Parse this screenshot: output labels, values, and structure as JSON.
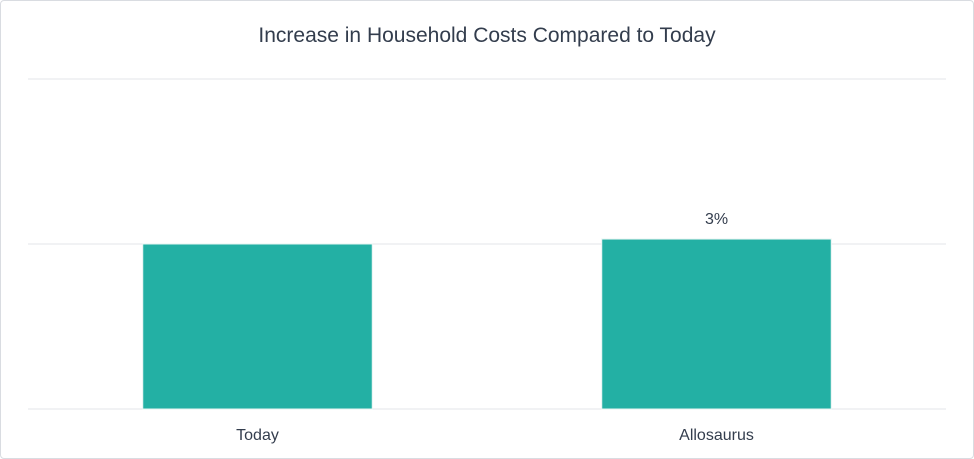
{
  "chart_data": {
    "type": "bar",
    "title": "Increase in Household Costs Compared to Today",
    "categories": [
      "Today",
      "Allosaurus"
    ],
    "values": [
      1.0,
      1.03
    ],
    "data_labels": [
      "",
      "3%"
    ],
    "xlabel": "",
    "ylabel": "",
    "ylim": [
      0,
      2
    ],
    "gridlines": [
      0,
      1,
      2
    ],
    "grid": true,
    "bar_color": "#23b0a4",
    "legend": "none"
  }
}
